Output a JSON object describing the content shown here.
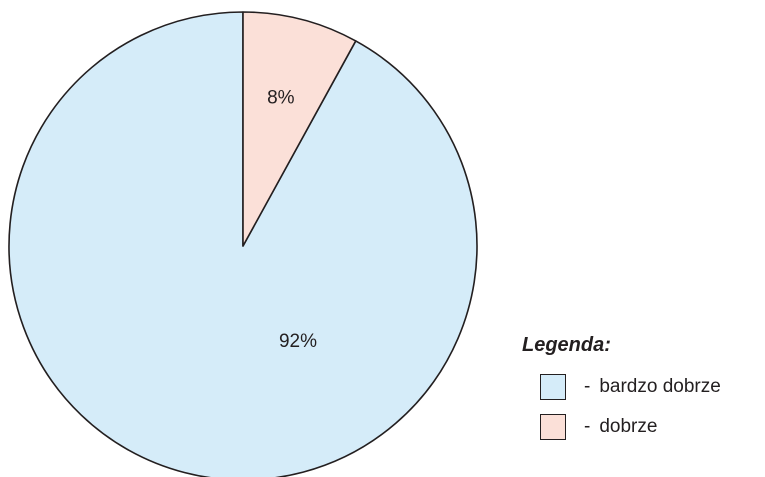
{
  "chart_data": {
    "type": "pie",
    "title": "",
    "start_angle_deg": 0,
    "direction": "counterclockwise",
    "slices": [
      {
        "label": "bardzo dobrze",
        "value": 92,
        "display": "92%",
        "color": "#d5ecf9"
      },
      {
        "label": "dobrze",
        "value": 8,
        "display": "8%",
        "color": "#fbe0d8"
      }
    ],
    "legend": {
      "title": "Legenda:",
      "placement": "bottom-right",
      "separator": "-"
    }
  }
}
